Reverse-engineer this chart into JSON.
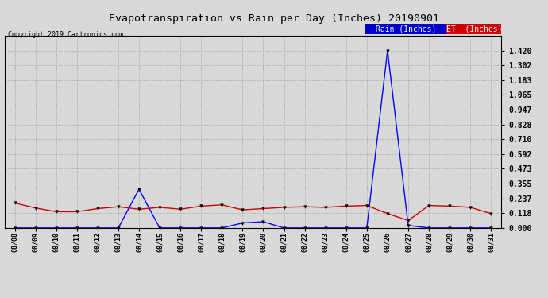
{
  "title": "Evapotranspiration vs Rain per Day (Inches) 20190901",
  "copyright": "Copyright 2019 Cartronics.com",
  "background_color": "#d8d8d8",
  "plot_bg_color": "#d8d8d8",
  "rain_color": "#0000ff",
  "et_color": "#cc0000",
  "x_labels": [
    "08/08",
    "08/09",
    "08/10",
    "08/11",
    "08/12",
    "08/13",
    "08/14",
    "08/15",
    "08/16",
    "08/17",
    "08/18",
    "08/19",
    "08/20",
    "08/21",
    "08/22",
    "08/23",
    "08/24",
    "08/25",
    "08/26",
    "08/27",
    "08/28",
    "08/29",
    "08/30",
    "08/31"
  ],
  "rain_values": [
    0.0,
    0.0,
    0.0,
    0.0,
    0.0,
    0.0,
    0.31,
    0.0,
    0.0,
    0.0,
    0.0,
    0.04,
    0.05,
    0.0,
    0.0,
    0.0,
    0.0,
    0.0,
    1.42,
    0.02,
    0.0,
    0.0,
    0.0,
    0.0
  ],
  "et_values": [
    0.2,
    0.16,
    0.13,
    0.13,
    0.155,
    0.17,
    0.15,
    0.165,
    0.15,
    0.175,
    0.185,
    0.145,
    0.155,
    0.165,
    0.17,
    0.165,
    0.175,
    0.18,
    0.115,
    0.06,
    0.18,
    0.175,
    0.165,
    0.115
  ],
  "ylim": [
    0.0,
    1.538
  ],
  "yticks": [
    0.0,
    0.118,
    0.237,
    0.355,
    0.473,
    0.592,
    0.71,
    0.828,
    0.947,
    1.065,
    1.183,
    1.302,
    1.42
  ],
  "legend_rain_bg": "#0000cc",
  "legend_et_bg": "#cc0000",
  "legend_rain_text": "Rain (Inches)",
  "legend_et_text": "ET  (Inches)"
}
